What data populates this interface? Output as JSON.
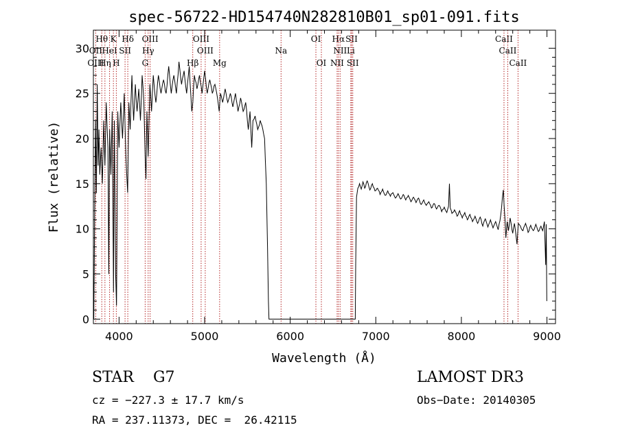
{
  "chart_data": {
    "type": "line",
    "title": "spec-56722-HD154740N282810B01_sp01-091.fits",
    "xlabel": "Wavelength (Å)",
    "ylabel": "Flux (relative)",
    "xlim": [
      3700,
      9100
    ],
    "ylim": [
      -0.5,
      32
    ],
    "xticks": [
      4000,
      5000,
      6000,
      7000,
      8000,
      9000
    ],
    "xtick_labels": [
      "4000",
      "5000",
      "6000",
      "7000",
      "8000",
      "9000"
    ],
    "yticks": [
      0,
      5,
      10,
      15,
      20,
      25,
      30
    ],
    "ytick_labels": [
      "0",
      "5",
      "10",
      "15",
      "20",
      "25",
      "30"
    ],
    "line_color": "#000000",
    "marker_color": "#b22222",
    "spectrum_points": [
      [
        3705,
        0
      ],
      [
        3715,
        12
      ],
      [
        3725,
        22
      ],
      [
        3735,
        14
      ],
      [
        3745,
        26
      ],
      [
        3755,
        17
      ],
      [
        3765,
        21
      ],
      [
        3775,
        16
      ],
      [
        3790,
        19
      ],
      [
        3805,
        15
      ],
      [
        3820,
        22
      ],
      [
        3835,
        17
      ],
      [
        3850,
        24
      ],
      [
        3870,
        19
      ],
      [
        3880,
        5
      ],
      [
        3890,
        21
      ],
      [
        3905,
        16
      ],
      [
        3920,
        23
      ],
      [
        3935,
        3
      ],
      [
        3945,
        22
      ],
      [
        3960,
        5
      ],
      [
        3970,
        1.5
      ],
      [
        3985,
        23
      ],
      [
        4000,
        19
      ],
      [
        4020,
        24
      ],
      [
        4040,
        20
      ],
      [
        4060,
        25
      ],
      [
        4080,
        18
      ],
      [
        4100,
        14
      ],
      [
        4115,
        24
      ],
      [
        4130,
        21
      ],
      [
        4150,
        27
      ],
      [
        4170,
        22
      ],
      [
        4190,
        26
      ],
      [
        4210,
        23
      ],
      [
        4230,
        25.5
      ],
      [
        4250,
        22
      ],
      [
        4270,
        27
      ],
      [
        4290,
        24
      ],
      [
        4305,
        18
      ],
      [
        4315,
        15.5
      ],
      [
        4325,
        23
      ],
      [
        4340,
        18
      ],
      [
        4360,
        26
      ],
      [
        4380,
        23
      ],
      [
        4400,
        27
      ],
      [
        4430,
        24
      ],
      [
        4460,
        27
      ],
      [
        4490,
        25
      ],
      [
        4520,
        26.5
      ],
      [
        4550,
        25
      ],
      [
        4580,
        28
      ],
      [
        4610,
        25
      ],
      [
        4640,
        27
      ],
      [
        4670,
        25
      ],
      [
        4700,
        28.5
      ],
      [
        4730,
        26
      ],
      [
        4760,
        27.5
      ],
      [
        4790,
        25
      ],
      [
        4820,
        28
      ],
      [
        4850,
        23
      ],
      [
        4862,
        24
      ],
      [
        4880,
        27
      ],
      [
        4910,
        25.5
      ],
      [
        4940,
        27
      ],
      [
        4970,
        25
      ],
      [
        5000,
        27.5
      ],
      [
        5030,
        25
      ],
      [
        5060,
        26.5
      ],
      [
        5090,
        25
      ],
      [
        5120,
        26
      ],
      [
        5150,
        24.5
      ],
      [
        5170,
        23
      ],
      [
        5185,
        25
      ],
      [
        5210,
        24
      ],
      [
        5240,
        25.5
      ],
      [
        5270,
        24
      ],
      [
        5300,
        25
      ],
      [
        5330,
        23.5
      ],
      [
        5360,
        25
      ],
      [
        5390,
        23
      ],
      [
        5420,
        24.5
      ],
      [
        5450,
        23
      ],
      [
        5480,
        24
      ],
      [
        5510,
        21
      ],
      [
        5530,
        23
      ],
      [
        5550,
        19
      ],
      [
        5565,
        22
      ],
      [
        5590,
        22.5
      ],
      [
        5620,
        21
      ],
      [
        5650,
        22
      ],
      [
        5680,
        21
      ],
      [
        5700,
        20
      ],
      [
        5720,
        15
      ],
      [
        5735,
        8
      ],
      [
        5745,
        2
      ],
      [
        5752,
        0
      ],
      [
        5760,
        0
      ],
      [
        6760,
        0
      ],
      [
        6765,
        6
      ],
      [
        6775,
        13.5
      ],
      [
        6790,
        14.5
      ],
      [
        6810,
        15
      ],
      [
        6830,
        14.4
      ],
      [
        6850,
        15.2
      ],
      [
        6870,
        14.5
      ],
      [
        6900,
        15.3
      ],
      [
        6930,
        14.3
      ],
      [
        6960,
        15
      ],
      [
        6990,
        14.2
      ],
      [
        7020,
        14.5
      ],
      [
        7050,
        13.8
      ],
      [
        7080,
        14.4
      ],
      [
        7110,
        13.7
      ],
      [
        7140,
        14.2
      ],
      [
        7170,
        13.6
      ],
      [
        7200,
        14
      ],
      [
        7230,
        13.4
      ],
      [
        7260,
        13.9
      ],
      [
        7290,
        13.3
      ],
      [
        7320,
        13.8
      ],
      [
        7350,
        13.2
      ],
      [
        7380,
        13.7
      ],
      [
        7410,
        13
      ],
      [
        7440,
        13.5
      ],
      [
        7470,
        12.9
      ],
      [
        7500,
        13.4
      ],
      [
        7530,
        12.7
      ],
      [
        7560,
        13.2
      ],
      [
        7590,
        12.6
      ],
      [
        7620,
        13
      ],
      [
        7650,
        12.3
      ],
      [
        7680,
        12.8
      ],
      [
        7710,
        12.2
      ],
      [
        7740,
        12.6
      ],
      [
        7770,
        11.9
      ],
      [
        7800,
        12.4
      ],
      [
        7830,
        11.8
      ],
      [
        7850,
        12.5
      ],
      [
        7860,
        15
      ],
      [
        7870,
        12.3
      ],
      [
        7890,
        11.7
      ],
      [
        7920,
        12.1
      ],
      [
        7950,
        11.4
      ],
      [
        7980,
        12
      ],
      [
        8010,
        11.2
      ],
      [
        8040,
        11.8
      ],
      [
        8070,
        11
      ],
      [
        8100,
        11.6
      ],
      [
        8130,
        10.8
      ],
      [
        8160,
        11.4
      ],
      [
        8190,
        10.6
      ],
      [
        8220,
        11.3
      ],
      [
        8250,
        10.3
      ],
      [
        8280,
        11.1
      ],
      [
        8310,
        10.2
      ],
      [
        8340,
        11
      ],
      [
        8370,
        10.1
      ],
      [
        8400,
        10.8
      ],
      [
        8430,
        9.9
      ],
      [
        8460,
        11.5
      ],
      [
        8480,
        13.5
      ],
      [
        8490,
        14.3
      ],
      [
        8500,
        12.5
      ],
      [
        8510,
        11
      ],
      [
        8520,
        9
      ],
      [
        8535,
        10.8
      ],
      [
        8550,
        9.8
      ],
      [
        8570,
        11.2
      ],
      [
        8600,
        9.5
      ],
      [
        8620,
        10.6
      ],
      [
        8650,
        8.3
      ],
      [
        8665,
        10.6
      ],
      [
        8690,
        10.3
      ],
      [
        8720,
        9.8
      ],
      [
        8750,
        10.6
      ],
      [
        8780,
        9.6
      ],
      [
        8810,
        10.4
      ],
      [
        8840,
        9.8
      ],
      [
        8870,
        10.5
      ],
      [
        8900,
        9.7
      ],
      [
        8930,
        10.3
      ],
      [
        8950,
        9.8
      ],
      [
        8970,
        10.8
      ],
      [
        8985,
        6
      ],
      [
        8992,
        10.5
      ],
      [
        8998,
        2
      ]
    ],
    "line_markers": [
      {
        "label": "Hθ",
        "wavelength": 3798,
        "row": 1
      },
      {
        "label": "K",
        "wavelength": 3934,
        "row": 1
      },
      {
        "label": "Hδ",
        "wavelength": 4102,
        "row": 1
      },
      {
        "label": "OIII",
        "wavelength": 4363,
        "row": 1
      },
      {
        "label": "OIII",
        "wavelength": 4959,
        "row": 1
      },
      {
        "label": "OI",
        "wavelength": 6300,
        "row": 1
      },
      {
        "label": "Hα",
        "wavelength": 6563,
        "row": 1
      },
      {
        "label": "SII",
        "wavelength": 6717,
        "row": 1
      },
      {
        "label": "CaII",
        "wavelength": 8498,
        "row": 1
      },
      {
        "label": "OII",
        "wavelength": 3727,
        "row": 2
      },
      {
        "label": "HeI",
        "wavelength": 3889,
        "row": 2
      },
      {
        "label": "SII",
        "wavelength": 4070,
        "row": 2
      },
      {
        "label": "Hγ",
        "wavelength": 4340,
        "row": 2
      },
      {
        "label": "OIII",
        "wavelength": 5007,
        "row": 2
      },
      {
        "label": "Na",
        "wavelength": 5893,
        "row": 2
      },
      {
        "label": "NII",
        "wavelength": 6583,
        "row": 2
      },
      {
        "label": "Li",
        "wavelength": 6708,
        "row": 2
      },
      {
        "label": "CaII",
        "wavelength": 8542,
        "row": 2
      },
      {
        "label": "OIII",
        "wavelength": 3727,
        "row": 3
      },
      {
        "label": "Hη",
        "wavelength": 3835,
        "row": 3
      },
      {
        "label": "H",
        "wavelength": 3968,
        "row": 3
      },
      {
        "label": "G",
        "wavelength": 4305,
        "row": 3
      },
      {
        "label": "Hβ",
        "wavelength": 4861,
        "row": 3
      },
      {
        "label": "Mg",
        "wavelength": 5175,
        "row": 3
      },
      {
        "label": "OI",
        "wavelength": 6364,
        "row": 3
      },
      {
        "label": "NII",
        "wavelength": 6548,
        "row": 3
      },
      {
        "label": "SII",
        "wavelength": 6731,
        "row": 3
      },
      {
        "label": "CaII",
        "wavelength": 8662,
        "row": 3
      }
    ]
  },
  "info": {
    "class": "STAR    G7",
    "survey": "LAMOST DR3",
    "cz": "cz = −227.3 ± 17.7 km/s",
    "obs_date": "Obs−Date: 20140305",
    "coords": "RA = 237.11373, DEC =  26.42115"
  }
}
